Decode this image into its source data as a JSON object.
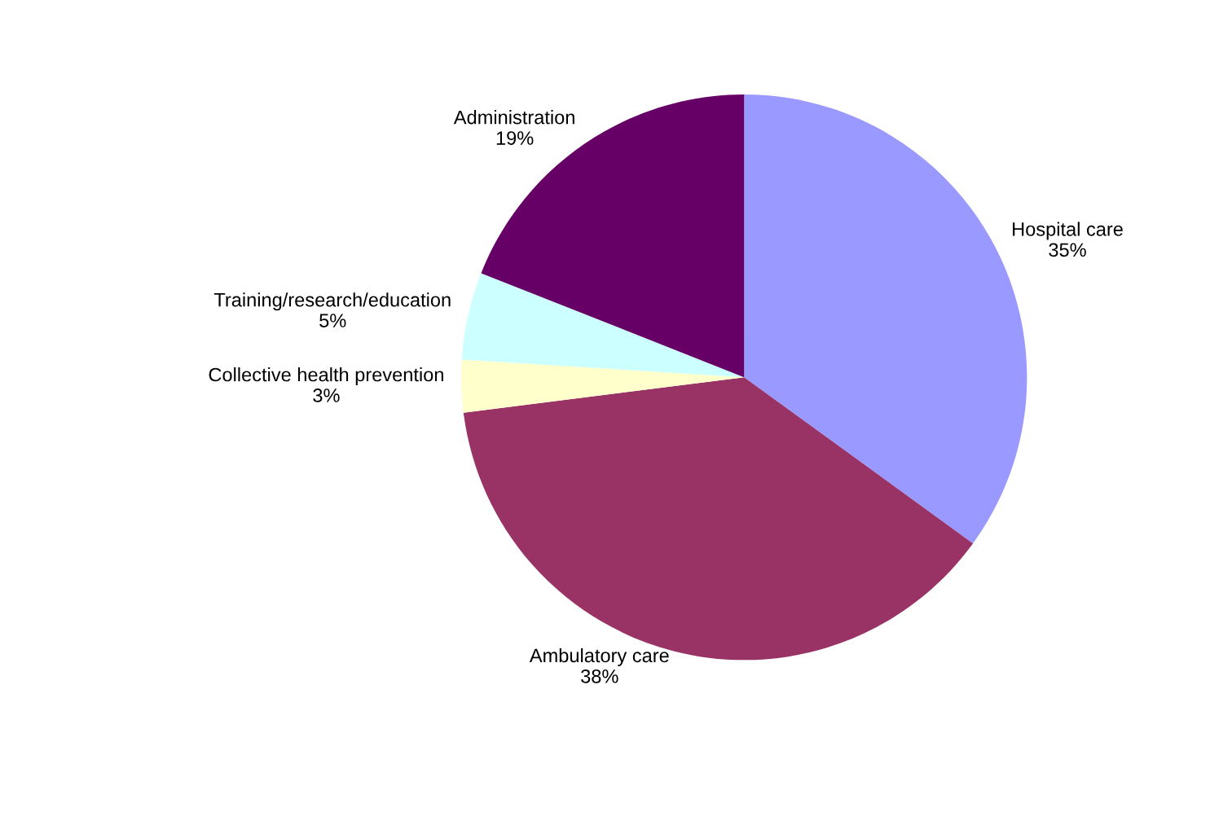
{
  "chart_data": {
    "type": "pie",
    "categories": [
      "Hospital care",
      "Ambulatory care",
      "Collective health prevention",
      "Training/research/education",
      "Administration"
    ],
    "values": [
      35,
      38,
      3,
      5,
      19
    ],
    "value_labels": [
      "35%",
      "38%",
      "3%",
      "5%",
      "19%"
    ],
    "colors": [
      "#9999ff",
      "#993366",
      "#ffffcc",
      "#ccffff",
      "#660066"
    ],
    "legend": false
  }
}
